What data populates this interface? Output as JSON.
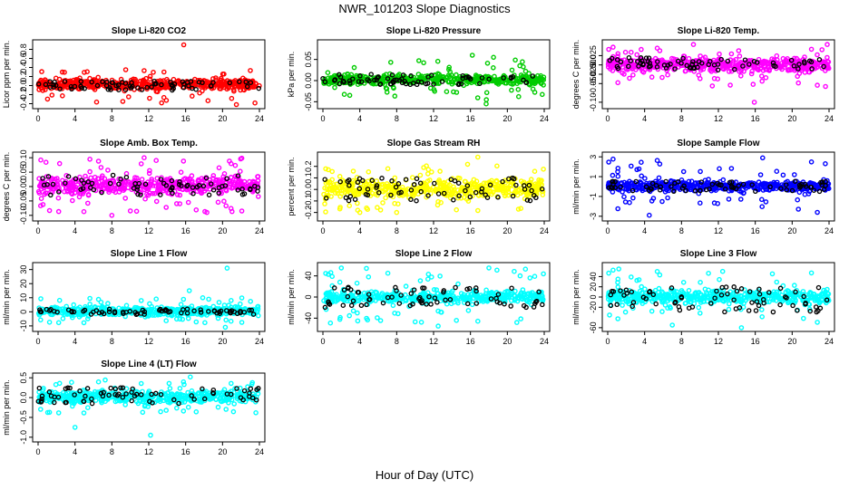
{
  "page": {
    "title": "NWR_101203  Slope Diagnostics",
    "xlabel": "Hour of Day (UTC)"
  },
  "chart_data": [
    {
      "type": "scatter",
      "title": "Slope Li-820 CO2",
      "ylabel": "Licor ppm per min.",
      "color": "#ff0000",
      "xlim": [
        0,
        24
      ],
      "xticks": [
        "0",
        "4",
        "8",
        "12",
        "16",
        "20",
        "24"
      ],
      "ylim": [
        -0.45,
        0.95
      ],
      "yticks": [
        -0.4,
        -0.2,
        0.0,
        0.2,
        0.4,
        0.6,
        0.8
      ],
      "ytick_labels": [
        "-0.4",
        "-0.2",
        "0.0",
        "0.2",
        "0.4",
        "0.6",
        "0.8"
      ],
      "core": [
        -0.1,
        0.15
      ],
      "spread": [
        -0.4,
        0.35
      ],
      "black_core": [
        -0.1,
        0.1
      ],
      "outliers": [
        {
          "x": 15.8,
          "y": 0.9
        },
        {
          "x": 21.5,
          "y": -0.42
        },
        {
          "x": 9.5,
          "y": 0.35
        }
      ]
    },
    {
      "type": "scatter",
      "title": "Slope Li-820 Pressure",
      "ylabel": "kPa per min.",
      "color": "#00cc00",
      "xlim": [
        0,
        24
      ],
      "xticks": [
        "0",
        "4",
        "8",
        "12",
        "16",
        "20",
        "24"
      ],
      "ylim": [
        -0.06,
        0.09
      ],
      "yticks": [
        -0.05,
        0.0,
        0.05
      ],
      "ytick_labels": [
        "-0.05",
        "0.00",
        "0.05"
      ],
      "core": [
        -0.01,
        0.015
      ],
      "spread": [
        -0.05,
        0.05
      ],
      "black_core": [
        -0.01,
        0.015
      ],
      "outliers": [
        {
          "x": 16.2,
          "y": 0.06
        },
        {
          "x": 17.7,
          "y": -0.055
        },
        {
          "x": 18.5,
          "y": 0.055
        }
      ]
    },
    {
      "type": "scatter",
      "title": "Slope Li-820 Temp.",
      "ylabel": "degrees C per min.",
      "color": "#ff00ff",
      "xlim": [
        0,
        24
      ],
      "xticks": [
        "0",
        "4",
        "8",
        "12",
        "16",
        "20",
        "24"
      ],
      "ylim": [
        -0.11,
        0.06
      ],
      "yticks": [
        -0.1,
        -0.05,
        -0.025,
        0.0,
        0.025
      ],
      "ytick_labels": [
        "-0.10",
        "-0.050",
        "-0.025",
        "0.000",
        "0.025"
      ],
      "core": [
        -0.02,
        0.02
      ],
      "spread": [
        -0.06,
        0.05
      ],
      "black_core": [
        -0.015,
        0.02
      ],
      "outliers": [
        {
          "x": 15.9,
          "y": -0.1
        },
        {
          "x": 23.8,
          "y": 0.055
        },
        {
          "x": 9.3,
          "y": 0.055
        }
      ]
    },
    {
      "type": "scatter",
      "title": "Slope Amb. Box Temp.",
      "ylabel": "degrees C per min.",
      "color": "#ff00ff",
      "xlim": [
        0,
        24
      ],
      "xticks": [
        "0",
        "4",
        "8",
        "12",
        "16",
        "20",
        "24"
      ],
      "ylim": [
        -0.11,
        0.11
      ],
      "yticks": [
        -0.1,
        -0.05,
        0.0,
        0.05,
        0.1
      ],
      "ytick_labels": [
        "-0.10",
        "-0.05",
        "0.00",
        "0.05",
        "0.10"
      ],
      "core": [
        -0.03,
        0.04
      ],
      "spread": [
        -0.09,
        0.1
      ],
      "black_core": [
        -0.03,
        0.04
      ],
      "outliers": [
        {
          "x": 8.0,
          "y": -0.1
        },
        {
          "x": 18.3,
          "y": -0.09
        },
        {
          "x": 11.5,
          "y": 0.1
        }
      ]
    },
    {
      "type": "scatter",
      "title": "Slope Gas Stream RH",
      "ylabel": "percent per min.",
      "color": "#ffff00",
      "xlim": [
        0,
        24
      ],
      "xticks": [
        "0",
        "4",
        "8",
        "12",
        "16",
        "20",
        "24"
      ],
      "ylim": [
        -0.25,
        0.3
      ],
      "yticks": [
        -0.2,
        -0.1,
        0.0,
        0.1,
        0.2
      ],
      "ytick_labels": [
        "-0.2",
        "-0.1",
        "0.0",
        "0.1",
        "0.2"
      ],
      "core": [
        -0.08,
        0.1
      ],
      "spread": [
        -0.2,
        0.22
      ],
      "black_core": [
        -0.1,
        0.1
      ],
      "outliers": [
        {
          "x": 16.8,
          "y": 0.28
        },
        {
          "x": 8.0,
          "y": -0.2
        },
        {
          "x": 4.0,
          "y": -0.2
        }
      ]
    },
    {
      "type": "scatter",
      "title": "Slope Sample Flow",
      "ylabel": "ml/min per min.",
      "color": "#0000ff",
      "xlim": [
        0,
        24
      ],
      "xticks": [
        "0",
        "4",
        "8",
        "12",
        "16",
        "20",
        "24"
      ],
      "ylim": [
        -3.2,
        3.2
      ],
      "yticks": [
        -3,
        -1,
        1,
        3
      ],
      "ytick_labels": [
        "-3",
        "-1",
        "1",
        "3"
      ],
      "core": [
        -0.5,
        0.6
      ],
      "spread": [
        -2.9,
        2.9
      ],
      "black_core": [
        -0.5,
        0.6
      ],
      "outliers": [
        {
          "x": 16.8,
          "y": 2.9
        },
        {
          "x": 4.5,
          "y": -2.9
        },
        {
          "x": 23.6,
          "y": 2.3
        }
      ]
    },
    {
      "type": "scatter",
      "title": "Slope Line 1 Flow",
      "ylabel": "ml/min per min.",
      "color": "#00ffff",
      "xlim": [
        0,
        24
      ],
      "xticks": [
        "0",
        "4",
        "8",
        "12",
        "16",
        "20",
        "24"
      ],
      "ylim": [
        -12,
        33
      ],
      "yticks": [
        -10,
        0,
        10,
        20,
        30
      ],
      "ytick_labels": [
        "-10",
        "0",
        "10",
        "20",
        "30"
      ],
      "core": [
        -3,
        4
      ],
      "spread": [
        -8,
        10
      ],
      "black_core": [
        -2,
        2
      ],
      "outliers": [
        {
          "x": 20.5,
          "y": 31
        },
        {
          "x": 16.4,
          "y": 15
        },
        {
          "x": 20.3,
          "y": -11
        }
      ]
    },
    {
      "type": "scatter",
      "title": "Slope Line 2 Flow",
      "ylabel": "ml/min per min.",
      "color": "#00ffff",
      "xlim": [
        0,
        24
      ],
      "xticks": [
        "0",
        "4",
        "8",
        "12",
        "16",
        "20",
        "24"
      ],
      "ylim": [
        -60,
        60
      ],
      "yticks": [
        -40,
        0,
        40
      ],
      "ytick_labels": [
        "-40",
        "0",
        "40"
      ],
      "core": [
        -12,
        12
      ],
      "spread": [
        -50,
        55
      ],
      "black_core": [
        -20,
        20
      ],
      "outliers": [
        {
          "x": 12.5,
          "y": -55
        },
        {
          "x": 18.0,
          "y": 55
        },
        {
          "x": 2.0,
          "y": 55
        }
      ]
    },
    {
      "type": "scatter",
      "title": "Slope Line 3 Flow",
      "ylabel": "ml/min per min.",
      "color": "#00ffff",
      "xlim": [
        0,
        24
      ],
      "xticks": [
        "0",
        "4",
        "8",
        "12",
        "16",
        "20",
        "24"
      ],
      "ylim": [
        -62,
        62
      ],
      "yticks": [
        -60,
        -20,
        0,
        20,
        40
      ],
      "ytick_labels": [
        "-60",
        "-20",
        "0",
        "20",
        "40"
      ],
      "core": [
        -15,
        15
      ],
      "spread": [
        -55,
        55
      ],
      "black_core": [
        -30,
        20
      ],
      "outliers": [
        {
          "x": 1.2,
          "y": 55
        },
        {
          "x": 7.0,
          "y": -55
        },
        {
          "x": 14.5,
          "y": -60
        }
      ]
    },
    {
      "type": "scatter",
      "title": "Slope Line 4 (LT) Flow",
      "ylabel": "ml/min per min.",
      "color": "#00ffff",
      "xlim": [
        0,
        24
      ],
      "xticks": [
        "0",
        "4",
        "8",
        "12",
        "16",
        "20",
        "24"
      ],
      "ylim": [
        -1.05,
        0.55
      ],
      "yticks": [
        -1.0,
        -0.5,
        0.0,
        0.5
      ],
      "ytick_labels": [
        "-1.0",
        "-0.5",
        "0.0",
        "0.5"
      ],
      "core": [
        -0.15,
        0.2
      ],
      "spread": [
        -0.4,
        0.45
      ],
      "black_core": [
        -0.15,
        0.25
      ],
      "outliers": [
        {
          "x": 12.2,
          "y": -0.95
        },
        {
          "x": 4.0,
          "y": -0.75
        },
        {
          "x": 16.5,
          "y": 0.52
        }
      ]
    }
  ]
}
